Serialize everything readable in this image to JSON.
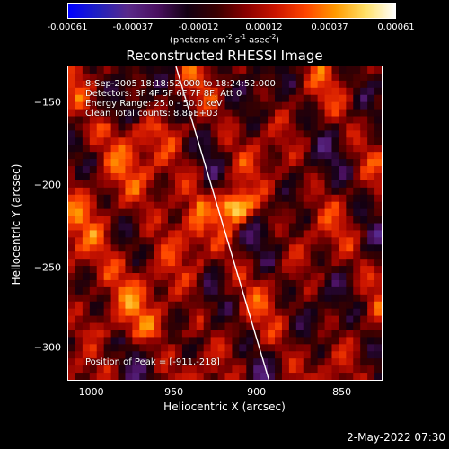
{
  "colorbar": {
    "tick_labels": [
      "-0.00061",
      "-0.00037",
      "-0.00012",
      "0.00012",
      "0.00037",
      "0.00061"
    ],
    "units": {
      "prefix": "(photons cm",
      "e1": "-2",
      "mid1": " s",
      "e2": "-1",
      "mid2": " asec",
      "e3": "-2",
      "suffix": ")"
    },
    "colormap": [
      "#0000ff",
      "#2020c0",
      "#5a2a8a",
      "#4a1060",
      "#120012",
      "#3a0000",
      "#8a0000",
      "#cc1500",
      "#ff4500",
      "#ff9a00",
      "#ffe066",
      "#ffffff"
    ]
  },
  "title": "Reconstructed RHESSI Image",
  "annotations": {
    "time": "8-Sep-2005 18:18:52.000 to 18:24:52.000",
    "detectors": "Detectors: 3F 4F 5F 6F 7F 8F, Att 0",
    "energy": "Energy Range: 25.0 - 50.0 keV",
    "clean": "Clean     Total counts: 8.85E+03",
    "peak": "Position of Peak = [-911,-218]"
  },
  "axes": {
    "xlabel": "Heliocentric X (arcsec)",
    "ylabel": "Heliocentric Y (arcsec)",
    "xlim": [
      -1012,
      -823
    ],
    "ylim": [
      -322,
      -133
    ],
    "xticks": [
      {
        "value": -1000,
        "label": "−1000"
      },
      {
        "value": -950,
        "label": "−950"
      },
      {
        "value": -900,
        "label": "−900"
      },
      {
        "value": -850,
        "label": "−850"
      }
    ],
    "yticks": [
      {
        "value": -150,
        "label": "−150"
      },
      {
        "value": -200,
        "label": "−200"
      },
      {
        "value": -250,
        "label": "−250"
      },
      {
        "value": -300,
        "label": "−300"
      }
    ]
  },
  "image": {
    "peak": [
      -911,
      -218
    ],
    "limb_points": [
      [
        -947,
        -133
      ],
      [
        -891,
        -322
      ]
    ]
  },
  "date": "2-May-2022 07:30"
}
